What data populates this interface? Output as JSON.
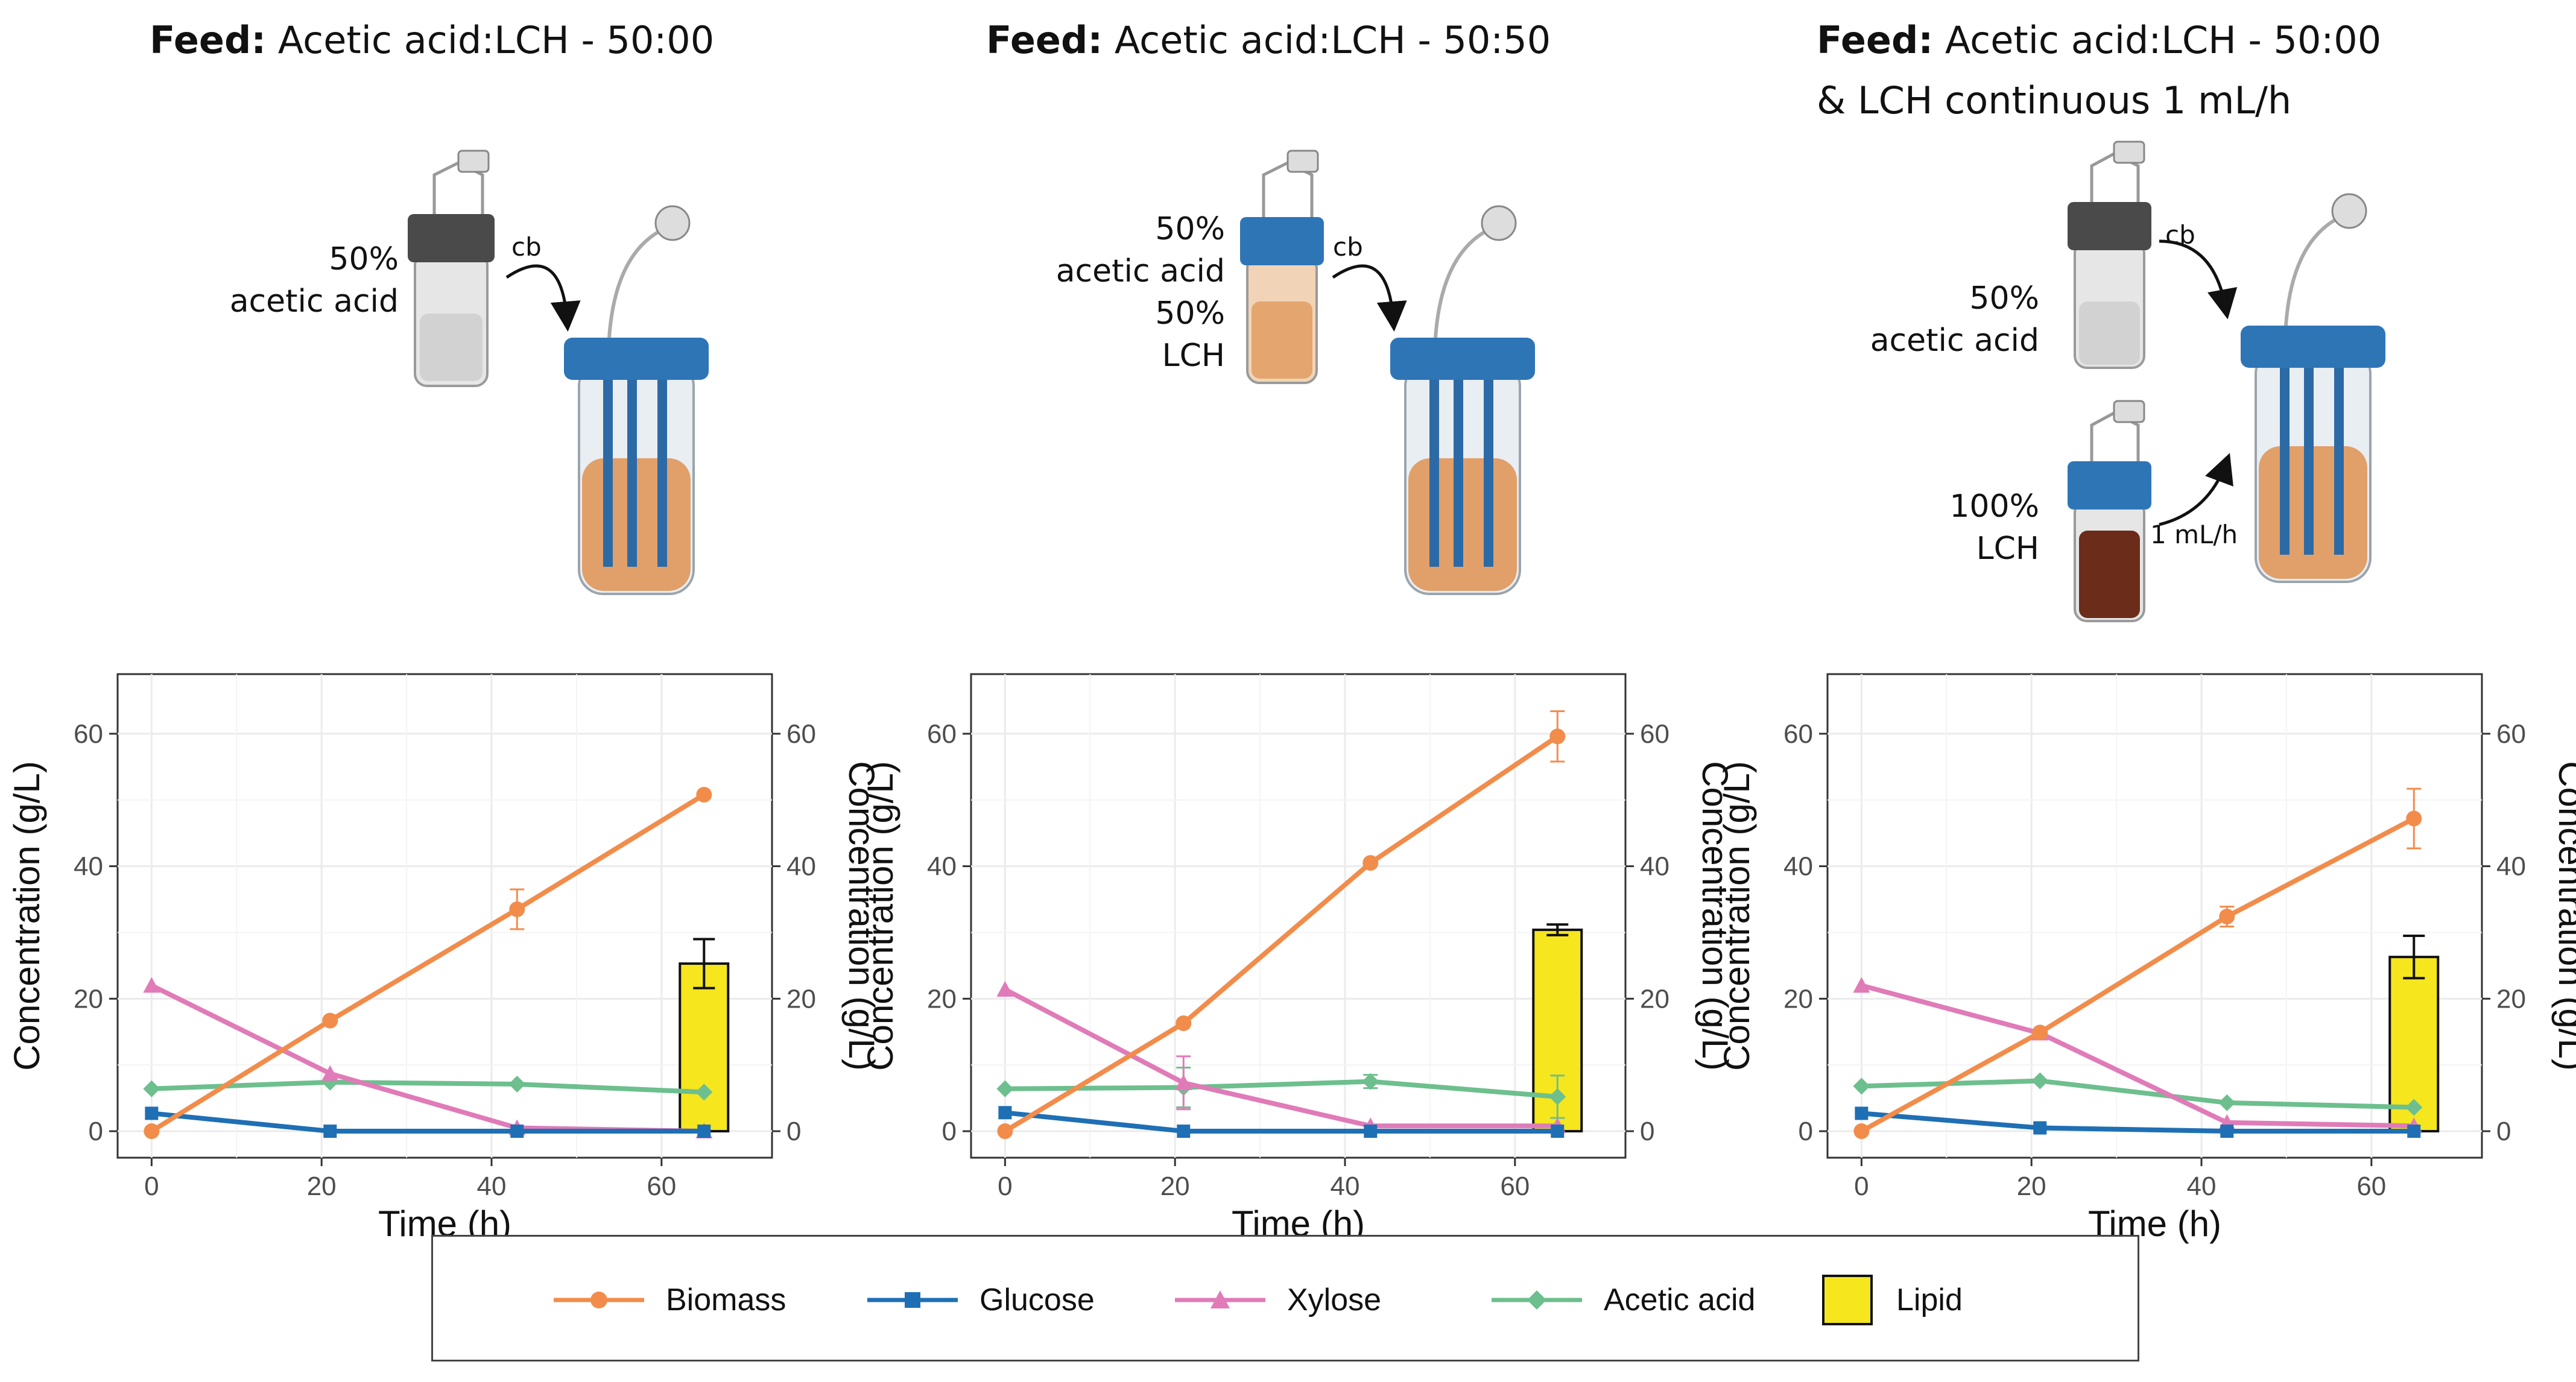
{
  "panels": [
    {
      "title_bold": "Feed:",
      "title_rest": "Acetic acid:LCH - 50:00",
      "title_line2": "",
      "feed_labels": [
        "50%",
        "acetic acid"
      ],
      "arrow_label": "cb"
    },
    {
      "title_bold": "Feed:",
      "title_rest": "Acetic acid:LCH - 50:50",
      "title_line2": "",
      "feed_labels": [
        "50%",
        "acetic acid",
        "50%",
        "LCH"
      ],
      "arrow_label": "cb"
    },
    {
      "title_bold": "Feed:",
      "title_rest": "Acetic acid:LCH - 50:00",
      "title_line2": "& LCH continuous 1 mL/h",
      "feed_labels": [
        "50%",
        "acetic acid"
      ],
      "feed2_labels": [
        "100%",
        "LCH"
      ],
      "arrow_label": "cb",
      "arrow2_label": "1 mL/h"
    }
  ],
  "colors": {
    "Biomass": "#F28C4B",
    "Glucose": "#1F6FB4",
    "Xylose": "#E07BB8",
    "Acetic acid": "#6DBF8E",
    "Lipid": "#F5E61E"
  },
  "legend": {
    "items": [
      {
        "name": "Biomass",
        "marker": "circle"
      },
      {
        "name": "Glucose",
        "marker": "square"
      },
      {
        "name": "Xylose",
        "marker": "triangle"
      },
      {
        "name": "Acetic acid",
        "marker": "diamond"
      },
      {
        "name": "Lipid",
        "marker": "box"
      }
    ]
  },
  "chart_data": [
    {
      "type": "line",
      "xlabel": "Time (h)",
      "ylabel": "Concentration (g/L)",
      "y2label": "Concentration (g/L)",
      "xlim": [
        -4,
        73
      ],
      "ylim": [
        -4,
        69
      ],
      "xticks": [
        0,
        20,
        40,
        60
      ],
      "yticks": [
        0,
        20,
        40,
        60
      ],
      "grid": true,
      "x": [
        0,
        21,
        43,
        65
      ],
      "series": [
        {
          "name": "Biomass",
          "values": [
            0,
            16.7,
            33.5,
            50.8
          ],
          "errors": [
            0,
            0,
            3,
            0
          ]
        },
        {
          "name": "Glucose",
          "values": [
            2.7,
            0,
            0,
            0
          ],
          "errors": [
            0,
            0,
            0,
            0
          ]
        },
        {
          "name": "Xylose",
          "values": [
            22,
            8.7,
            0.5,
            0
          ],
          "errors": [
            0,
            0,
            0,
            0
          ]
        },
        {
          "name": "Acetic acid",
          "values": [
            6.4,
            7.4,
            7.1,
            5.9
          ],
          "errors": [
            0,
            0,
            0,
            0
          ]
        }
      ],
      "bar": {
        "name": "Lipid",
        "x": 65,
        "value": 25.3,
        "error": 3.7
      }
    },
    {
      "type": "line",
      "xlabel": "Time (h)",
      "ylabel": "Concentration (g/L)",
      "y2label": "Concentration (g/L)",
      "xlim": [
        -4,
        73
      ],
      "ylim": [
        -4,
        69
      ],
      "xticks": [
        0,
        20,
        40,
        60
      ],
      "yticks": [
        0,
        20,
        40,
        60
      ],
      "grid": true,
      "x": [
        0,
        21,
        43,
        65
      ],
      "series": [
        {
          "name": "Biomass",
          "values": [
            0,
            16.3,
            40.5,
            59.6
          ],
          "errors": [
            0,
            0,
            0,
            3.8
          ]
        },
        {
          "name": "Glucose",
          "values": [
            2.8,
            0,
            0,
            0
          ],
          "errors": [
            0,
            0,
            0,
            0
          ]
        },
        {
          "name": "Xylose",
          "values": [
            21.4,
            7.3,
            0.8,
            0.8
          ],
          "errors": [
            0,
            4,
            0,
            0
          ]
        },
        {
          "name": "Acetic acid",
          "values": [
            6.4,
            6.6,
            7.5,
            5.2
          ],
          "errors": [
            0,
            3,
            1,
            3.2
          ]
        }
      ],
      "bar": {
        "name": "Lipid",
        "x": 65,
        "value": 30.4,
        "error": 0.8
      }
    },
    {
      "type": "line",
      "xlabel": "Time (h)",
      "ylabel": "Concentration (g/L)",
      "y2label": "Concentration (g/L)",
      "xlim": [
        -4,
        73
      ],
      "ylim": [
        -4,
        69
      ],
      "xticks": [
        0,
        20,
        40,
        60
      ],
      "yticks": [
        0,
        20,
        40,
        60
      ],
      "grid": true,
      "x": [
        0,
        21,
        43,
        65
      ],
      "series": [
        {
          "name": "Biomass",
          "values": [
            0,
            14.9,
            32.4,
            47.2
          ],
          "errors": [
            0,
            0,
            1.5,
            4.5
          ]
        },
        {
          "name": "Glucose",
          "values": [
            2.7,
            0.5,
            0,
            0
          ],
          "errors": [
            0,
            0,
            0,
            0
          ]
        },
        {
          "name": "Xylose",
          "values": [
            22,
            14.8,
            1.3,
            0.8
          ],
          "errors": [
            0,
            0,
            0,
            0
          ]
        },
        {
          "name": "Acetic acid",
          "values": [
            6.8,
            7.6,
            4.3,
            3.6
          ],
          "errors": [
            0,
            0,
            0,
            0
          ]
        }
      ],
      "bar": {
        "name": "Lipid",
        "x": 65,
        "value": 26.3,
        "error": 3.2
      }
    }
  ]
}
